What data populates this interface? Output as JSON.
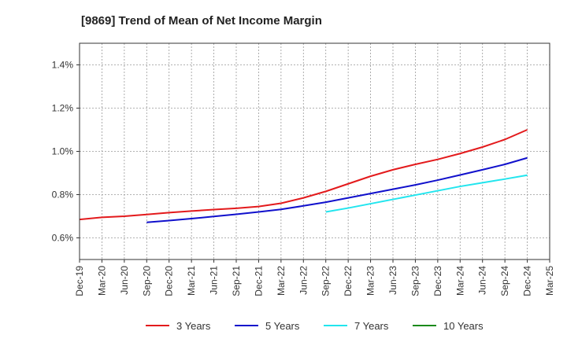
{
  "chart_data": {
    "type": "line",
    "title": "[9869]  Trend of Mean of Net Income Margin",
    "xlabel": "",
    "ylabel": "",
    "x": [
      "Dec-19",
      "Mar-20",
      "Jun-20",
      "Sep-20",
      "Dec-20",
      "Mar-21",
      "Jun-21",
      "Sep-21",
      "Dec-21",
      "Mar-22",
      "Jun-22",
      "Sep-22",
      "Dec-22",
      "Mar-23",
      "Jun-23",
      "Sep-23",
      "Dec-23",
      "Mar-24",
      "Jun-24",
      "Sep-24",
      "Dec-24",
      "Mar-25"
    ],
    "ylim": [
      0.5,
      1.5
    ],
    "y_ticks": [
      0.6,
      0.8,
      1.0,
      1.2,
      1.4
    ],
    "y_tick_labels": [
      "0.6%",
      "0.8%",
      "1.0%",
      "1.2%",
      "1.4%"
    ],
    "grid": true,
    "legend_position": "bottom",
    "series": [
      {
        "name": "3 Years",
        "color": "#e31a1c",
        "values": [
          0.685,
          0.695,
          0.7,
          0.708,
          0.717,
          0.724,
          0.731,
          0.737,
          0.745,
          0.76,
          0.785,
          0.815,
          0.85,
          0.885,
          0.915,
          0.94,
          0.963,
          0.99,
          1.02,
          1.055,
          1.1,
          null
        ]
      },
      {
        "name": "5 Years",
        "color": "#1010cc",
        "values": [
          null,
          null,
          null,
          0.672,
          0.68,
          0.689,
          0.699,
          0.709,
          0.72,
          0.732,
          0.748,
          0.765,
          0.785,
          0.805,
          0.825,
          0.845,
          0.867,
          0.891,
          0.915,
          0.94,
          0.97,
          null
        ]
      },
      {
        "name": "7 Years",
        "color": "#22e5ee",
        "values": [
          null,
          null,
          null,
          null,
          null,
          null,
          null,
          null,
          null,
          null,
          null,
          0.72,
          0.738,
          0.758,
          0.778,
          0.798,
          0.818,
          0.838,
          0.855,
          0.872,
          0.89,
          null
        ]
      },
      {
        "name": "10 Years",
        "color": "#1a8a1a",
        "values": [
          null,
          null,
          null,
          null,
          null,
          null,
          null,
          null,
          null,
          null,
          null,
          null,
          null,
          null,
          null,
          null,
          null,
          null,
          null,
          null,
          null,
          null
        ]
      }
    ]
  }
}
